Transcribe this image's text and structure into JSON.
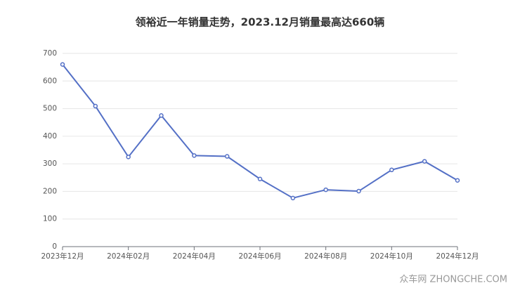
{
  "chart_data": {
    "type": "line",
    "title": "领裕近一年销量走势，2023.12月销量最高达660辆",
    "categories": [
      "2023年12月",
      null,
      "2024年02月",
      null,
      "2024年04月",
      null,
      "2024年06月",
      null,
      "2024年08月",
      null,
      "2024年10月",
      null,
      "2024年12月"
    ],
    "values": [
      660,
      509,
      325,
      475,
      330,
      327,
      245,
      176,
      206,
      201,
      278,
      309,
      240
    ],
    "color": "#5470c6",
    "ylim": [
      0,
      700
    ],
    "yticks": [
      0,
      100,
      200,
      300,
      400,
      500,
      600,
      700
    ],
    "grid": true,
    "watermark": "众车网 ZHONGCHE.COM"
  }
}
